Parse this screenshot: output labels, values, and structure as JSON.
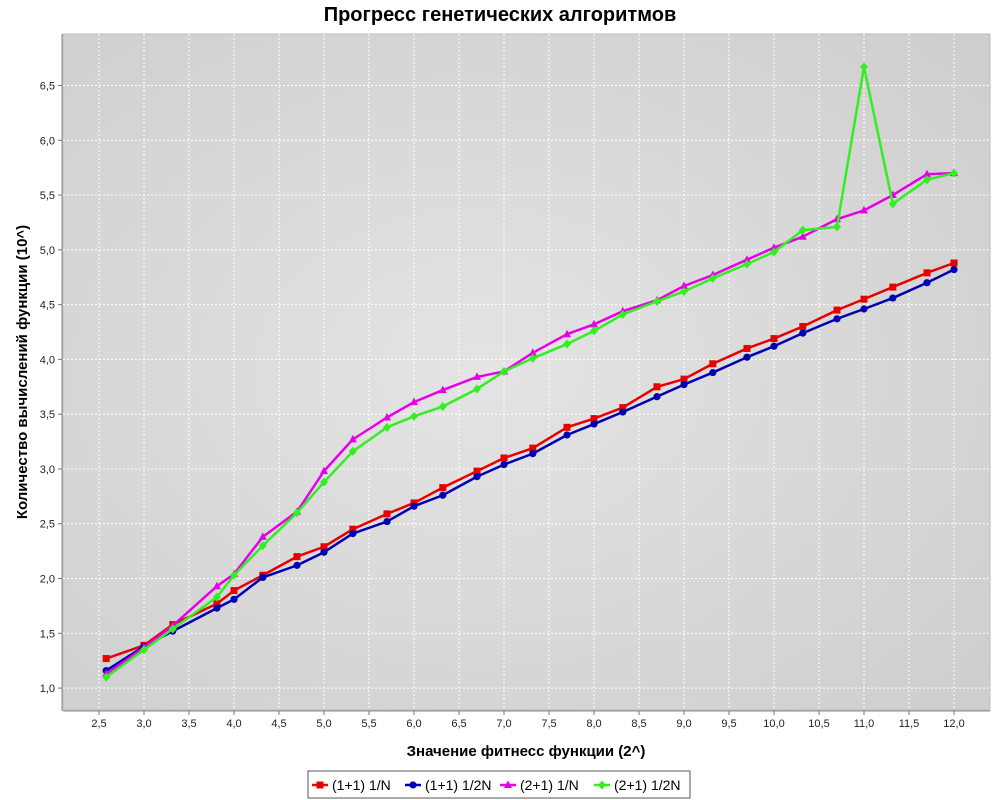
{
  "chart_data": {
    "type": "line",
    "title": "Прогресс генетических алгоритмов",
    "xlabel": "Значение фитнесс функции (2^)",
    "ylabel": "Количество вычислений функции (10^)",
    "xlim": [
      2.1,
      12.4
    ],
    "ylim": [
      0.8,
      6.97
    ],
    "x_ticks": [
      2.5,
      3.0,
      3.5,
      4.0,
      4.5,
      5.0,
      5.5,
      6.0,
      6.5,
      7.0,
      7.5,
      8.0,
      8.5,
      9.0,
      9.5,
      10.0,
      10.5,
      11.0,
      11.5,
      12.0
    ],
    "x_tick_labels": [
      "2,5",
      "3,0",
      "3,5",
      "4,0",
      "4,5",
      "5,0",
      "5,5",
      "6,0",
      "6,5",
      "7,0",
      "7,5",
      "8,0",
      "8,5",
      "9,0",
      "9,5",
      "10,0",
      "10,5",
      "11,0",
      "11,5",
      "12,0"
    ],
    "y_ticks": [
      1.0,
      1.5,
      2.0,
      2.5,
      3.0,
      3.5,
      4.0,
      4.5,
      5.0,
      5.5,
      6.0,
      6.5
    ],
    "y_tick_labels": [
      "1,0",
      "1,5",
      "2,0",
      "2,5",
      "3,0",
      "3,5",
      "4,0",
      "4,5",
      "5,0",
      "5,5",
      "6,0",
      "6,5"
    ],
    "grid": true,
    "legend_position": "bottom-center",
    "background": "#d3d3d3",
    "series": [
      {
        "name": "(1+1) 1/N",
        "color": "#e60000",
        "marker": "square",
        "x": [
          2.58,
          3.0,
          3.32,
          3.81,
          4.0,
          4.32,
          4.7,
          5.0,
          5.32,
          5.7,
          6.0,
          6.32,
          6.7,
          7.0,
          7.32,
          7.7,
          8.0,
          8.32,
          8.7,
          9.0,
          9.32,
          9.7,
          10.0,
          10.32,
          10.7,
          11.0,
          11.32,
          11.7,
          12.0
        ],
        "y": [
          1.27,
          1.39,
          1.58,
          1.77,
          1.89,
          2.03,
          2.2,
          2.29,
          2.45,
          2.59,
          2.69,
          2.83,
          2.98,
          3.1,
          3.19,
          3.38,
          3.46,
          3.56,
          3.75,
          3.82,
          3.96,
          4.1,
          4.19,
          4.3,
          4.45,
          4.55,
          4.66,
          4.79,
          4.88
        ]
      },
      {
        "name": "(1+1) 1/2N",
        "color": "#0000b3",
        "marker": "circle",
        "x": [
          2.58,
          3.0,
          3.32,
          3.81,
          4.0,
          4.32,
          4.7,
          5.0,
          5.32,
          5.7,
          6.0,
          6.32,
          6.7,
          7.0,
          7.32,
          7.7,
          8.0,
          8.32,
          8.7,
          9.0,
          9.32,
          9.7,
          10.0,
          10.32,
          10.7,
          11.0,
          11.32,
          11.7,
          12.0
        ],
        "y": [
          1.16,
          1.38,
          1.52,
          1.73,
          1.81,
          2.01,
          2.12,
          2.24,
          2.41,
          2.52,
          2.66,
          2.76,
          2.93,
          3.04,
          3.14,
          3.31,
          3.41,
          3.52,
          3.66,
          3.77,
          3.88,
          4.02,
          4.12,
          4.24,
          4.37,
          4.46,
          4.56,
          4.7,
          4.82
        ]
      },
      {
        "name": "(2+1) 1/N",
        "color": "#e600e6",
        "marker": "triangle",
        "x": [
          2.58,
          3.0,
          3.32,
          3.81,
          4.0,
          4.32,
          4.7,
          5.0,
          5.32,
          5.7,
          6.0,
          6.32,
          6.7,
          7.0,
          7.32,
          7.7,
          8.0,
          8.32,
          8.7,
          9.0,
          9.32,
          9.7,
          10.0,
          10.32,
          10.7,
          11.0,
          11.32,
          11.7,
          12.0
        ],
        "y": [
          1.13,
          1.37,
          1.57,
          1.93,
          2.04,
          2.38,
          2.61,
          2.98,
          3.27,
          3.47,
          3.61,
          3.72,
          3.84,
          3.89,
          4.06,
          4.23,
          4.32,
          4.44,
          4.54,
          4.67,
          4.77,
          4.91,
          5.02,
          5.12,
          5.28,
          5.36,
          5.5,
          5.69,
          5.7
        ]
      },
      {
        "name": "(2+1) 1/2N",
        "color": "#33ee22",
        "marker": "diamond",
        "x": [
          2.58,
          3.0,
          3.32,
          3.81,
          4.0,
          4.32,
          4.7,
          5.0,
          5.32,
          5.7,
          6.0,
          6.32,
          6.7,
          7.0,
          7.32,
          7.7,
          8.0,
          8.32,
          8.7,
          9.0,
          9.32,
          9.7,
          10.0,
          10.32,
          10.7,
          11.0,
          11.32,
          11.7,
          12.0
        ],
        "y": [
          1.1,
          1.35,
          1.54,
          1.83,
          2.03,
          2.3,
          2.6,
          2.88,
          3.16,
          3.38,
          3.48,
          3.57,
          3.73,
          3.89,
          4.01,
          4.14,
          4.26,
          4.41,
          4.53,
          4.62,
          4.74,
          4.87,
          4.98,
          5.18,
          5.21,
          6.67,
          5.42,
          5.64,
          5.7
        ]
      }
    ]
  }
}
